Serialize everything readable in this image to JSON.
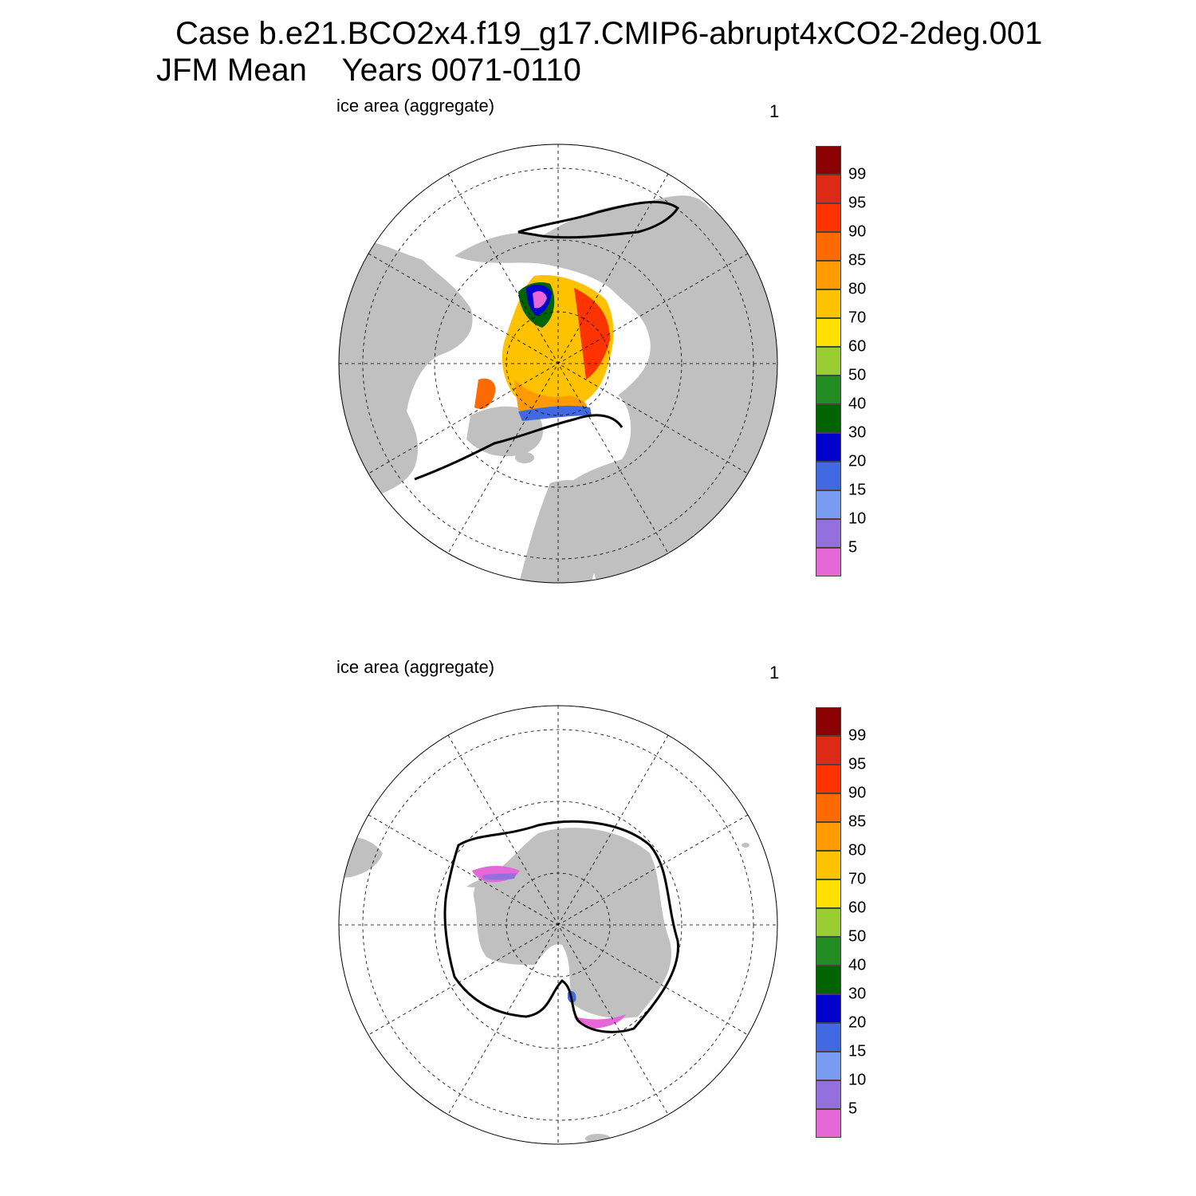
{
  "header": {
    "case_line": "Case b.e21.BCO2x4.f19_g17.CMIP6-abrupt4xCO2-2deg.001",
    "period_line": "JFM Mean    Years 0071-0110"
  },
  "panels": [
    {
      "hemisphere": "north",
      "label": "ice area  (aggregate)",
      "number": "1"
    },
    {
      "hemisphere": "south",
      "label": "ice area  (aggregate)",
      "number": "1"
    }
  ],
  "colorbar": {
    "colors": [
      "#e667d8",
      "#9370db",
      "#7a9cf0",
      "#4169e1",
      "#0000cd",
      "#006400",
      "#228b22",
      "#9acd32",
      "#ffe000",
      "#ffc200",
      "#ff9a00",
      "#ff6a00",
      "#ff3300",
      "#dc2a14",
      "#8b0000"
    ],
    "labels": [
      "5",
      "10",
      "15",
      "20",
      "30",
      "40",
      "50",
      "60",
      "70",
      "80",
      "85",
      "90",
      "95",
      "99"
    ]
  },
  "colors": {
    "land": "#c0c0c0",
    "ocean": "#ffffff",
    "ice_edge": "#000000"
  }
}
